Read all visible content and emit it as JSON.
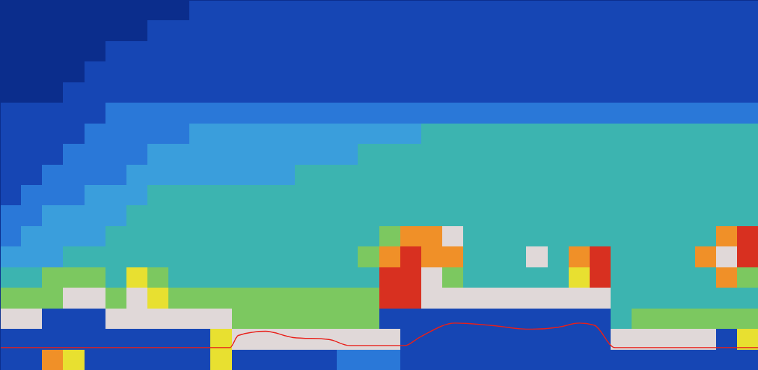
{
  "chart_data": {
    "type": "heatmap",
    "tick_labels": false,
    "xlim": [
      0,
      36
    ],
    "ylim": [
      18,
      0
    ],
    "colors": [
      "#0b2d8c",
      "#1646b4",
      "#2a78d8",
      "#3a9edc",
      "#3cb4b0",
      "#7cc860",
      "#e8e030",
      "#f09028",
      "#d83020",
      "#e0d8d8"
    ],
    "cells": [
      [
        0,
        0,
        0,
        0,
        0,
        0,
        0,
        0,
        0,
        1,
        1,
        1,
        1,
        1,
        1,
        1,
        1,
        1,
        1,
        1,
        1,
        1,
        1,
        1,
        1,
        1,
        1,
        1,
        1,
        1,
        1,
        1,
        1,
        1,
        1,
        1
      ],
      [
        0,
        0,
        0,
        0,
        0,
        0,
        0,
        1,
        1,
        1,
        1,
        1,
        1,
        1,
        1,
        1,
        1,
        1,
        1,
        1,
        1,
        1,
        1,
        1,
        1,
        1,
        1,
        1,
        1,
        1,
        1,
        1,
        1,
        1,
        1,
        1
      ],
      [
        0,
        0,
        0,
        0,
        0,
        1,
        1,
        1,
        1,
        1,
        1,
        1,
        1,
        1,
        1,
        1,
        1,
        1,
        1,
        1,
        1,
        1,
        1,
        1,
        1,
        1,
        1,
        1,
        1,
        1,
        1,
        1,
        1,
        1,
        1,
        1
      ],
      [
        0,
        0,
        0,
        0,
        1,
        1,
        1,
        1,
        1,
        1,
        1,
        1,
        1,
        1,
        1,
        1,
        1,
        1,
        1,
        1,
        1,
        1,
        1,
        1,
        1,
        1,
        1,
        1,
        1,
        1,
        1,
        1,
        1,
        1,
        1,
        1
      ],
      [
        0,
        0,
        0,
        1,
        1,
        1,
        1,
        1,
        1,
        1,
        1,
        1,
        1,
        1,
        1,
        1,
        1,
        1,
        1,
        1,
        1,
        1,
        1,
        1,
        1,
        1,
        1,
        1,
        1,
        1,
        1,
        1,
        1,
        1,
        1,
        1
      ],
      [
        1,
        1,
        1,
        1,
        1,
        2,
        2,
        2,
        2,
        2,
        2,
        2,
        2,
        2,
        2,
        2,
        2,
        2,
        2,
        2,
        2,
        2,
        2,
        2,
        2,
        2,
        2,
        2,
        2,
        2,
        2,
        2,
        2,
        2,
        2,
        2
      ],
      [
        1,
        1,
        1,
        1,
        2,
        2,
        2,
        2,
        2,
        3,
        3,
        3,
        3,
        3,
        3,
        3,
        3,
        3,
        3,
        3,
        4,
        4,
        4,
        4,
        4,
        4,
        4,
        4,
        4,
        4,
        4,
        4,
        4,
        4,
        4,
        4
      ],
      [
        1,
        1,
        1,
        2,
        2,
        2,
        2,
        3,
        3,
        3,
        3,
        3,
        3,
        3,
        3,
        3,
        3,
        4,
        4,
        4,
        4,
        4,
        4,
        4,
        4,
        4,
        4,
        4,
        4,
        4,
        4,
        4,
        4,
        4,
        4,
        4
      ],
      [
        1,
        1,
        2,
        2,
        2,
        2,
        3,
        3,
        3,
        3,
        3,
        3,
        3,
        3,
        4,
        4,
        4,
        4,
        4,
        4,
        4,
        4,
        4,
        4,
        4,
        4,
        4,
        4,
        4,
        4,
        4,
        4,
        4,
        4,
        4,
        4
      ],
      [
        1,
        2,
        2,
        2,
        3,
        3,
        3,
        4,
        4,
        4,
        4,
        4,
        4,
        4,
        4,
        4,
        4,
        4,
        4,
        4,
        4,
        4,
        4,
        4,
        4,
        4,
        4,
        4,
        4,
        4,
        4,
        4,
        4,
        4,
        4,
        4
      ],
      [
        2,
        2,
        3,
        3,
        3,
        3,
        4,
        4,
        4,
        4,
        4,
        4,
        4,
        4,
        4,
        4,
        4,
        4,
        4,
        4,
        4,
        4,
        4,
        4,
        4,
        4,
        4,
        4,
        4,
        4,
        4,
        4,
        4,
        4,
        4,
        4
      ],
      [
        2,
        3,
        3,
        3,
        3,
        4,
        4,
        4,
        4,
        4,
        4,
        4,
        4,
        4,
        4,
        4,
        4,
        4,
        5,
        7,
        7,
        9,
        4,
        4,
        4,
        4,
        4,
        4,
        4,
        4,
        4,
        4,
        4,
        4,
        7,
        8
      ],
      [
        3,
        3,
        3,
        4,
        4,
        4,
        4,
        4,
        4,
        4,
        4,
        4,
        4,
        4,
        4,
        4,
        4,
        5,
        7,
        8,
        7,
        7,
        4,
        4,
        4,
        9,
        4,
        7,
        8,
        4,
        4,
        4,
        4,
        7,
        9,
        8
      ],
      [
        4,
        4,
        5,
        5,
        5,
        4,
        6,
        5,
        4,
        4,
        4,
        4,
        4,
        4,
        4,
        4,
        4,
        4,
        8,
        8,
        9,
        5,
        4,
        4,
        4,
        4,
        4,
        6,
        8,
        4,
        4,
        4,
        4,
        4,
        7,
        5
      ],
      [
        5,
        5,
        5,
        9,
        9,
        5,
        9,
        6,
        5,
        5,
        5,
        5,
        5,
        5,
        5,
        5,
        5,
        5,
        8,
        8,
        9,
        9,
        9,
        9,
        9,
        9,
        9,
        9,
        9,
        4,
        4,
        4,
        4,
        4,
        4,
        4
      ],
      [
        9,
        9,
        1,
        1,
        1,
        9,
        9,
        9,
        9,
        9,
        9,
        5,
        5,
        5,
        5,
        5,
        5,
        5,
        1,
        1,
        1,
        1,
        1,
        1,
        1,
        1,
        1,
        1,
        1,
        4,
        5,
        5,
        5,
        5,
        5,
        5
      ],
      [
        1,
        1,
        1,
        1,
        1,
        1,
        1,
        1,
        1,
        1,
        6,
        9,
        9,
        9,
        9,
        9,
        9,
        9,
        9,
        1,
        1,
        1,
        1,
        1,
        1,
        1,
        1,
        1,
        1,
        9,
        9,
        9,
        9,
        9,
        1,
        6
      ],
      [
        1,
        1,
        7,
        6,
        1,
        1,
        1,
        1,
        1,
        1,
        6,
        1,
        1,
        1,
        1,
        1,
        2,
        2,
        2,
        1,
        1,
        1,
        1,
        1,
        1,
        1,
        1,
        1,
        1,
        1,
        1,
        1,
        1,
        1,
        1,
        1
      ]
    ],
    "bottom_line": {
      "type": "line",
      "color": "#e8201a",
      "x": [
        0,
        10.9,
        11.3,
        12.6,
        13.9,
        15.6,
        16.6,
        19.2,
        19.9,
        21.6,
        23.2,
        25.2,
        26.5,
        27.5,
        28.2,
        29.2,
        29.9,
        36
      ],
      "values": [
        16.9,
        16.9,
        16.3,
        16.1,
        16.4,
        16.5,
        16.8,
        16.8,
        16.4,
        15.7,
        15.8,
        16.0,
        15.9,
        15.7,
        15.8,
        16.9,
        16.9,
        16.9
      ]
    }
  }
}
